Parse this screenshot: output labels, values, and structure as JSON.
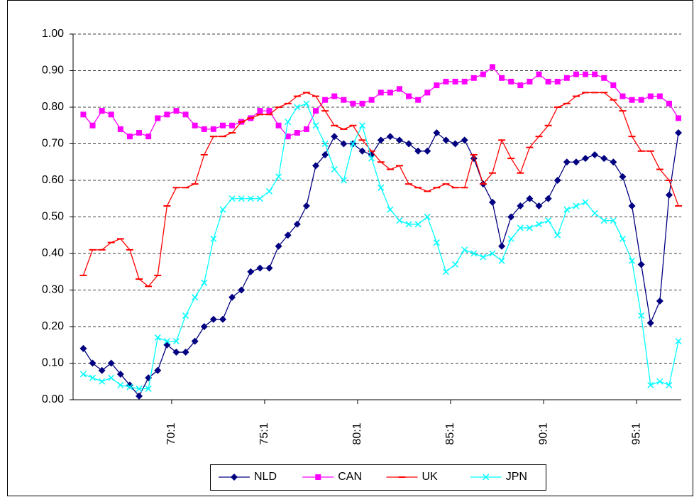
{
  "chart_data": {
    "type": "line",
    "x": [
      1965.25,
      1965.75,
      1966.25,
      1966.75,
      1967.25,
      1967.75,
      1968.25,
      1968.75,
      1969.25,
      1969.75,
      1970.25,
      1970.75,
      1971.25,
      1971.75,
      1972.25,
      1972.75,
      1973.25,
      1973.75,
      1974.25,
      1974.75,
      1975.25,
      1975.75,
      1976.25,
      1976.75,
      1977.25,
      1977.75,
      1978.25,
      1978.75,
      1979.25,
      1979.75,
      1980.25,
      1980.75,
      1981.25,
      1981.75,
      1982.25,
      1982.75,
      1983.25,
      1983.75,
      1984.25,
      1984.75,
      1985.25,
      1985.75,
      1986.25,
      1986.75,
      1987.25,
      1987.75,
      1988.25,
      1988.75,
      1989.25,
      1989.75,
      1990.25,
      1990.75,
      1991.25,
      1991.75,
      1992.25,
      1992.75,
      1993.25,
      1993.75,
      1994.25,
      1994.75,
      1995.25,
      1995.75,
      1996.25,
      1996.75,
      1997.25
    ],
    "xlim": [
      1964.7,
      1997.4
    ],
    "xticks": [
      {
        "value": 1970,
        "label": "70:1"
      },
      {
        "value": 1975,
        "label": "75:1"
      },
      {
        "value": 1980,
        "label": "80:1"
      },
      {
        "value": 1985,
        "label": "85:1"
      },
      {
        "value": 1990,
        "label": "90:1"
      },
      {
        "value": 1995,
        "label": "95:1"
      }
    ],
    "ylim": [
      0,
      1
    ],
    "yticks": [
      {
        "value": 0,
        "label": "0.00"
      },
      {
        "value": 0.1,
        "label": "0.10"
      },
      {
        "value": 0.2,
        "label": "0.20"
      },
      {
        "value": 0.3,
        "label": "0.30"
      },
      {
        "value": 0.4,
        "label": "0.40"
      },
      {
        "value": 0.5,
        "label": "0.50"
      },
      {
        "value": 0.6,
        "label": "0.60"
      },
      {
        "value": 0.7,
        "label": "0.70"
      },
      {
        "value": 0.8,
        "label": "0.80"
      },
      {
        "value": 0.9,
        "label": "0.90"
      },
      {
        "value": 1,
        "label": "1.00"
      }
    ],
    "grid": true,
    "legend": "bottom",
    "series": [
      {
        "name": "NLD",
        "color": "#000080",
        "marker": "diamond",
        "values": [
          0.14,
          0.1,
          0.08,
          0.1,
          0.07,
          0.04,
          0.01,
          0.06,
          0.08,
          0.15,
          0.13,
          0.13,
          0.16,
          0.2,
          0.22,
          0.22,
          0.28,
          0.3,
          0.35,
          0.36,
          0.36,
          0.42,
          0.45,
          0.48,
          0.53,
          0.64,
          0.67,
          0.72,
          0.7,
          0.7,
          0.68,
          0.67,
          0.71,
          0.72,
          0.71,
          0.7,
          0.68,
          0.68,
          0.73,
          0.71,
          0.7,
          0.71,
          0.66,
          0.59,
          0.54,
          0.42,
          0.5,
          0.53,
          0.55,
          0.53,
          0.55,
          0.6,
          0.65,
          0.65,
          0.66,
          0.67,
          0.66,
          0.65,
          0.61,
          0.53,
          0.37,
          0.21,
          0.27,
          0.56,
          0.73
        ]
      },
      {
        "name": "CAN",
        "color": "#ff00ff",
        "marker": "square",
        "values": [
          0.78,
          0.75,
          0.79,
          0.78,
          0.74,
          0.72,
          0.73,
          0.72,
          0.77,
          0.78,
          0.79,
          0.78,
          0.75,
          0.74,
          0.74,
          0.75,
          0.75,
          0.76,
          0.77,
          0.79,
          0.79,
          0.75,
          0.72,
          0.73,
          0.74,
          0.79,
          0.82,
          0.83,
          0.82,
          0.81,
          0.81,
          0.82,
          0.84,
          0.84,
          0.85,
          0.83,
          0.82,
          0.84,
          0.86,
          0.87,
          0.87,
          0.87,
          0.88,
          0.89,
          0.91,
          0.88,
          0.87,
          0.86,
          0.87,
          0.89,
          0.87,
          0.87,
          0.88,
          0.89,
          0.89,
          0.89,
          0.88,
          0.86,
          0.83,
          0.82,
          0.82,
          0.83,
          0.83,
          0.81,
          0.77
        ]
      },
      {
        "name": "UK",
        "color": "#ff0000",
        "marker": "dash",
        "values": [
          0.34,
          0.41,
          0.41,
          0.43,
          0.44,
          0.41,
          0.33,
          0.31,
          0.34,
          0.53,
          0.58,
          0.58,
          0.59,
          0.67,
          0.72,
          0.72,
          0.73,
          0.76,
          0.77,
          0.78,
          0.78,
          0.8,
          0.81,
          0.83,
          0.84,
          0.83,
          0.79,
          0.75,
          0.74,
          0.75,
          0.71,
          0.68,
          0.65,
          0.63,
          0.64,
          0.59,
          0.58,
          0.57,
          0.58,
          0.59,
          0.58,
          0.58,
          0.67,
          0.59,
          0.62,
          0.71,
          0.66,
          0.62,
          0.69,
          0.72,
          0.75,
          0.8,
          0.81,
          0.83,
          0.84,
          0.84,
          0.84,
          0.82,
          0.79,
          0.72,
          0.68,
          0.68,
          0.63,
          0.6,
          0.53
        ]
      },
      {
        "name": "JPN",
        "color": "#00ffff",
        "marker": "cross",
        "values": [
          0.07,
          0.06,
          0.05,
          0.06,
          0.04,
          0.035,
          0.03,
          0.03,
          0.17,
          0.16,
          0.16,
          0.23,
          0.28,
          0.32,
          0.44,
          0.52,
          0.55,
          0.55,
          0.55,
          0.55,
          0.57,
          0.61,
          0.76,
          0.8,
          0.81,
          0.75,
          0.7,
          0.63,
          0.6,
          0.7,
          0.75,
          0.66,
          0.58,
          0.52,
          0.49,
          0.48,
          0.48,
          0.5,
          0.43,
          0.35,
          0.37,
          0.41,
          0.4,
          0.39,
          0.4,
          0.38,
          0.44,
          0.47,
          0.47,
          0.48,
          0.49,
          0.45,
          0.52,
          0.53,
          0.54,
          0.51,
          0.49,
          0.49,
          0.44,
          0.38,
          0.23,
          0.04,
          0.05,
          0.04,
          0.16
        ]
      }
    ]
  }
}
